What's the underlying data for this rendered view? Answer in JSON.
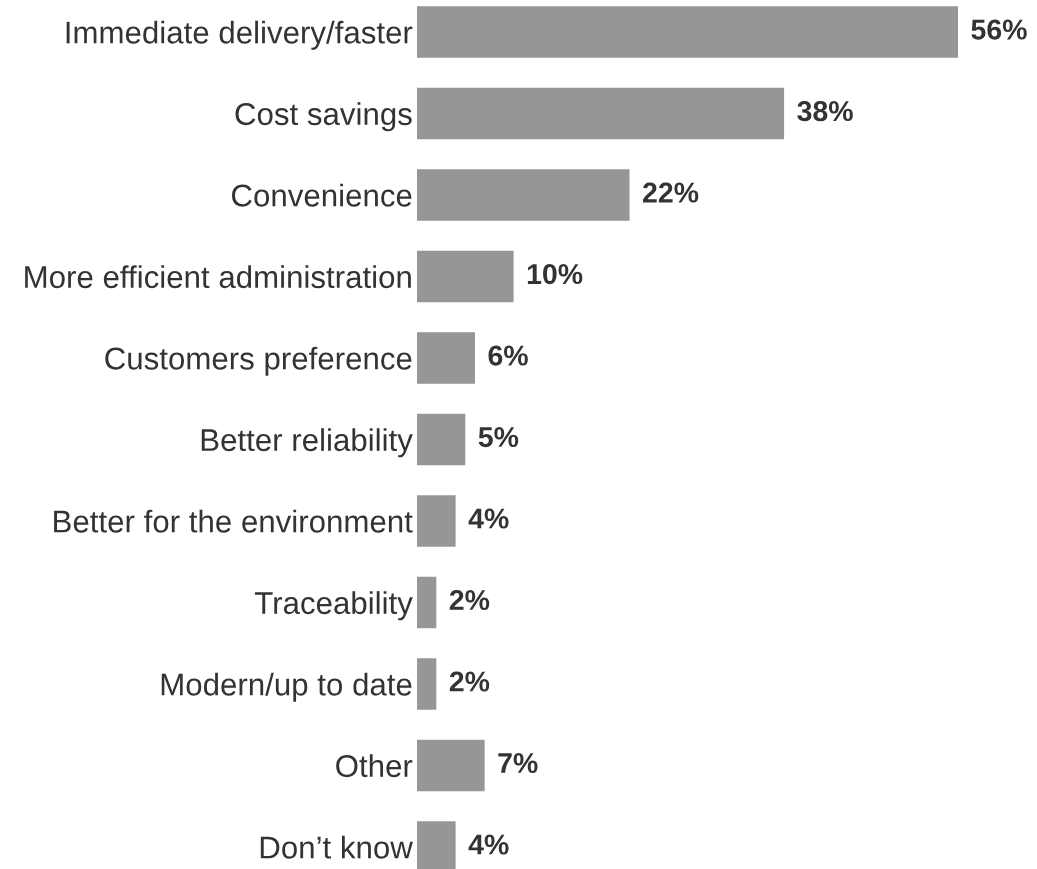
{
  "chart_data": {
    "type": "bar",
    "orientation": "horizontal",
    "categories": [
      "Immediate delivery/faster",
      "Cost savings",
      "Convenience",
      "More efficient administration",
      "Customers preference",
      "Better reliability",
      "Better for the environment",
      "Traceability",
      "Modern/up to date",
      "Other",
      "Don’t know"
    ],
    "values": [
      56,
      38,
      22,
      10,
      6,
      5,
      4,
      2,
      2,
      7,
      4
    ],
    "color": "#969696",
    "value_labels": [
      "56%",
      "38%",
      "22%",
      "10%",
      "6%",
      "5%",
      "4%",
      "2%",
      "2%",
      "7%",
      "4%"
    ],
    "grid": false,
    "legend": false,
    "tick_labels": "y"
  }
}
